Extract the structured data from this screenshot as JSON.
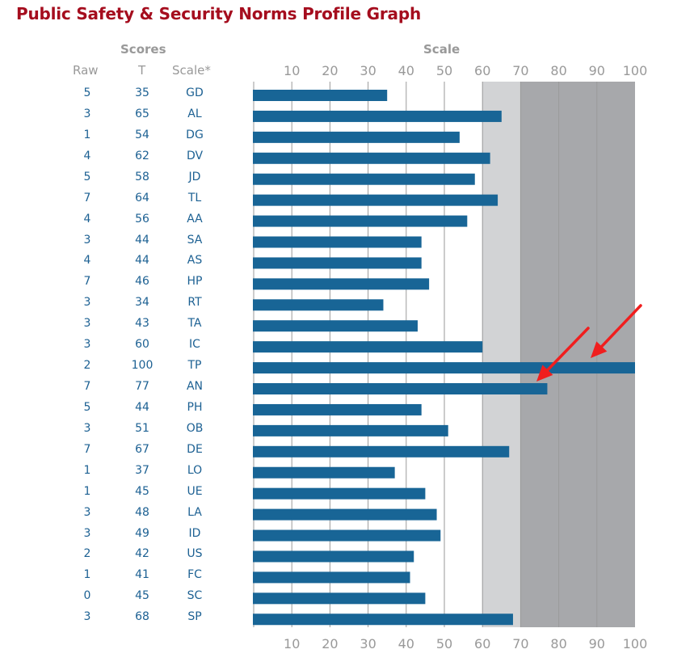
{
  "title": "Public Safety & Security Norms Profile Graph",
  "headers": {
    "scores": "Scores",
    "scale_group": "Scale",
    "raw": "Raw",
    "t": "T",
    "scale": "Scale*"
  },
  "colors": {
    "title": "#a50d1e",
    "bar": "#186596",
    "text_value": "#1d6193",
    "header": "#999999",
    "band_light": "#d2d3d5",
    "band_dark": "#a7a8ab",
    "arrow": "#f01e1e"
  },
  "chart_data": {
    "type": "bar",
    "orientation": "horizontal",
    "title": "Public Safety & Security Norms Profile Graph",
    "xlabel": "Scale",
    "xlim": [
      0,
      100
    ],
    "ticks": [
      10,
      20,
      30,
      40,
      50,
      60,
      70,
      80,
      90,
      100
    ],
    "grid": true,
    "shaded_bands": [
      {
        "from": 60,
        "to": 70,
        "shade": "light"
      },
      {
        "from": 70,
        "to": 100,
        "shade": "dark"
      }
    ],
    "categories": [
      "GD",
      "AL",
      "DG",
      "DV",
      "JD",
      "TL",
      "AA",
      "SA",
      "AS",
      "HP",
      "RT",
      "TA",
      "IC",
      "TP",
      "AN",
      "PH",
      "OB",
      "DE",
      "LO",
      "UE",
      "LA",
      "ID",
      "US",
      "FC",
      "SC",
      "SP"
    ],
    "raw": [
      5,
      3,
      1,
      4,
      5,
      7,
      4,
      3,
      4,
      7,
      3,
      3,
      3,
      2,
      7,
      5,
      3,
      7,
      1,
      1,
      3,
      3,
      2,
      1,
      0,
      3
    ],
    "values": [
      35,
      65,
      54,
      62,
      58,
      64,
      56,
      44,
      44,
      46,
      34,
      43,
      60,
      100,
      77,
      44,
      51,
      67,
      37,
      45,
      48,
      49,
      42,
      41,
      45,
      68
    ],
    "annotations": [
      {
        "type": "arrow",
        "points_to": "AN"
      },
      {
        "type": "arrow",
        "points_to": "TP"
      }
    ]
  }
}
